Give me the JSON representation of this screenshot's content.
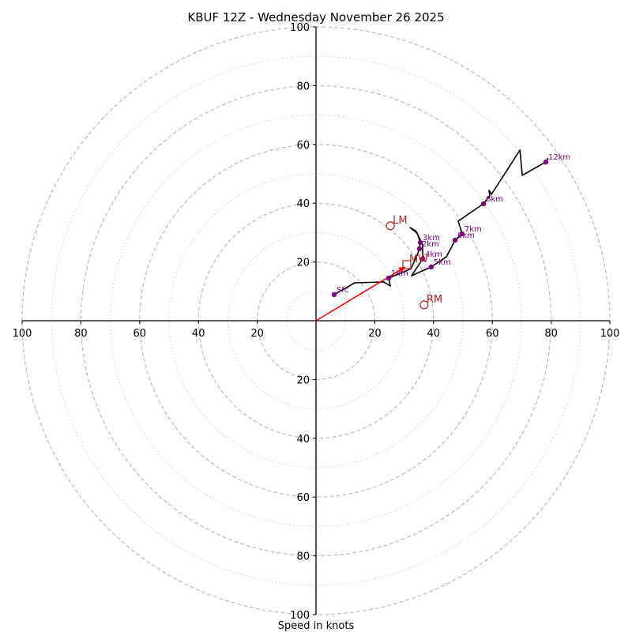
{
  "chart_data": {
    "type": "line",
    "title": "KBUF 12Z - Wednesday November 26 2025",
    "xlabel": "Speed in knots",
    "ylabel": "",
    "plot_kind": "hodograph",
    "range_knots": 100,
    "rings_major": [
      20,
      40,
      60,
      80,
      100
    ],
    "rings_minor": [
      10,
      30,
      50,
      70,
      90
    ],
    "tick_labels": {
      "x_left": [
        "100",
        "80",
        "60",
        "40",
        "20"
      ],
      "x_right": [
        "20",
        "40",
        "60",
        "80",
        "100"
      ],
      "y_top": [
        "20",
        "40",
        "60",
        "80",
        "100"
      ],
      "y_bottom": [
        "20",
        "40",
        "60",
        "80",
        "100"
      ]
    },
    "grid": true,
    "colors": {
      "trace": "#000000",
      "height_markers": "#800080",
      "storm_motion": "#b22222",
      "shear_vector": "#ff0000",
      "ring_major": "#bbbbbb",
      "ring_minor": "#cccccc"
    },
    "series": [
      {
        "name": "hodograph",
        "u": [
          6.2,
          13.2,
          23.1,
          25.3,
          24.7,
          32.3,
          34.4,
          35.2,
          35.5,
          34.4,
          32.0,
          34.0,
          36.3,
          36.3,
          32.5,
          39.2,
          44.4,
          47.3,
          49.7,
          48.4,
          57.0,
          59.1,
          58.9,
          59.7,
          69.4,
          70.2,
          78.2,
          79.0
        ],
        "v": [
          8.9,
          12.9,
          13.2,
          11.8,
          14.5,
          17.7,
          22.3,
          24.5,
          26.6,
          29.8,
          31.7,
          30.5,
          25.8,
          21.0,
          15.3,
          18.3,
          21.8,
          27.4,
          29.6,
          33.9,
          39.8,
          42.5,
          44.4,
          43.0,
          58.1,
          49.5,
          54.0,
          55.4
        ]
      }
    ],
    "height_markers": [
      {
        "label": "Sfc",
        "u": 6.2,
        "v": 8.9
      },
      {
        "label": "1km",
        "u": 24.7,
        "v": 14.5
      },
      {
        "label": "2km",
        "u": 35.2,
        "v": 24.5
      },
      {
        "label": "3km",
        "u": 35.5,
        "v": 26.6
      },
      {
        "label": "4km",
        "u": 36.3,
        "v": 21.0
      },
      {
        "label": "5km",
        "u": 39.2,
        "v": 18.3
      },
      {
        "label": "6km",
        "u": 47.3,
        "v": 27.4
      },
      {
        "label": "7km",
        "u": 49.7,
        "v": 29.6
      },
      {
        "label": "8km",
        "u": 57.0,
        "v": 39.8
      },
      {
        "label": "12km",
        "u": 78.2,
        "v": 54.0
      }
    ],
    "storm_motions": [
      {
        "label": "LM",
        "u": 25.3,
        "v": 32.3,
        "marker": "circle"
      },
      {
        "label": "RM",
        "u": 36.8,
        "v": 5.4,
        "marker": "circle"
      },
      {
        "label": "MW",
        "u": 30.9,
        "v": 19.1,
        "marker": "square"
      }
    ],
    "shear_vector": {
      "u0": 0,
      "v0": 0,
      "u1": 30.4,
      "v1": 18.3
    }
  }
}
